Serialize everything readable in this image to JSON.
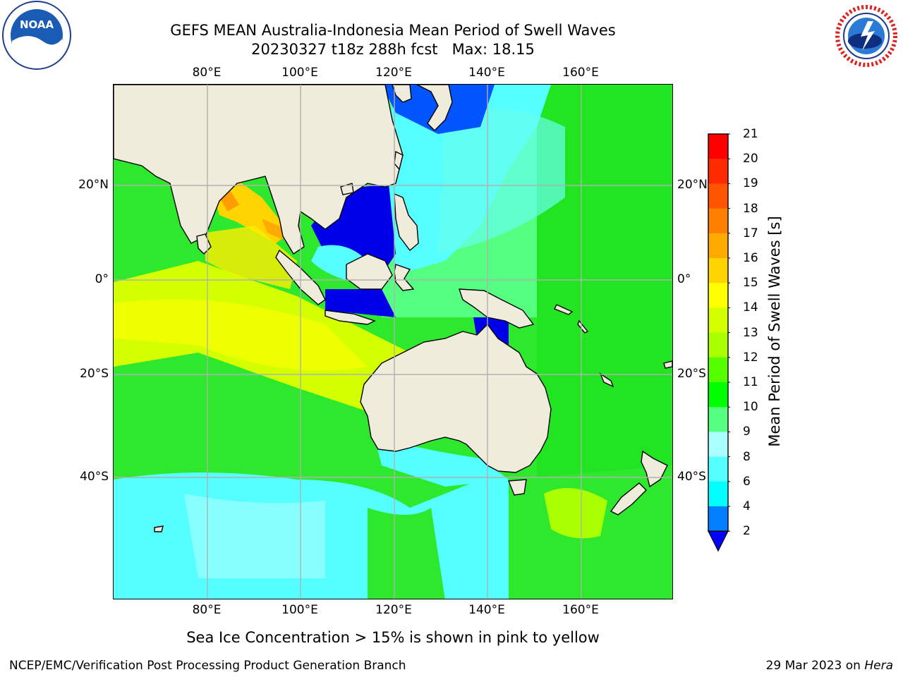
{
  "title_line1": "GEFS MEAN Australia-Indonesia Mean Period of Swell Waves",
  "title_line2": "20230327 t18z 288h fcst   Max: 18.15",
  "lon_labels": [
    "80°E",
    "100°E",
    "120°E",
    "140°E",
    "160°E"
  ],
  "lat_labels": [
    "20°N",
    "0°",
    "20°S",
    "40°S"
  ],
  "colorbar": {
    "label": "Mean Period of Swell Waves [s]",
    "ticks": [
      "21",
      "20",
      "19",
      "18",
      "17",
      "16",
      "15",
      "14",
      "13",
      "12",
      "11",
      "10",
      "9",
      "8",
      "6",
      "4",
      "2"
    ],
    "colors": [
      "#ff0000",
      "#ff2b00",
      "#ff5500",
      "#ff7f00",
      "#ffaa00",
      "#ffd400",
      "#ffff00",
      "#d4ff00",
      "#aaff00",
      "#55ff00",
      "#00ff00",
      "#55ff80",
      "#aaffff",
      "#55ffff",
      "#00ffff",
      "#0080ff",
      "#0000ff"
    ],
    "extend_color": "#0000ff"
  },
  "colors": {
    "land": "#efecdc",
    "grid": "#b0b0b0"
  },
  "footer_note": "Sea Ice Concentration > 15% is shown in pink to yellow",
  "credit": "NCEP/EMC/Verification Post Processing Product Generation Branch",
  "date_text": "29 Mar 2023 on ",
  "date_host": "Hera",
  "logos": {
    "noaa_text": "NOAA",
    "nws_ring_text": "NATIONAL WEATHER SERVICE"
  }
}
